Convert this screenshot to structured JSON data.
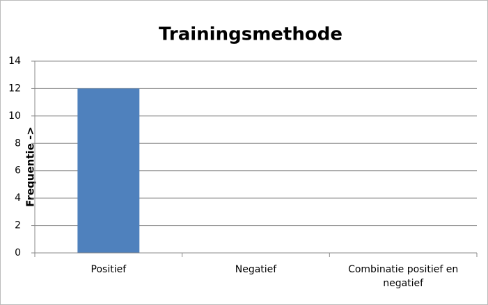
{
  "chart_data": {
    "type": "bar",
    "title": "Trainingsmethode",
    "y_label": "Frequentie ->",
    "categories": [
      "Positief",
      "Negatief",
      "Combinatie positief en negatief"
    ],
    "values": [
      12,
      0,
      0
    ],
    "color": "#4f81bd",
    "ylim": [
      0,
      14
    ],
    "yticks": [
      0,
      2,
      4,
      6,
      8,
      10,
      12,
      14
    ],
    "grid": true
  }
}
